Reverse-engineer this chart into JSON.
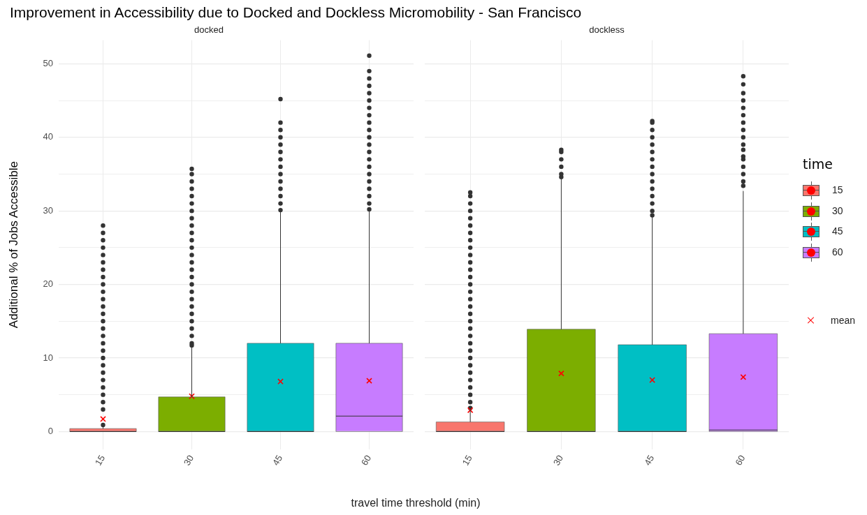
{
  "chart_data": [
    {
      "type": "box",
      "title": "Improvement in Accessibility due to Docked and Dockless Micromobility - San Francisco",
      "subtitle": "docked",
      "xlabel": "travel time threshold (min)",
      "ylabel": "Additional % of Jobs Accessible",
      "categories": [
        "15",
        "30",
        "45",
        "60"
      ],
      "ylim": [
        -2.4,
        53.2
      ],
      "yticks": [
        0,
        {
          "value": 5,
          "label": null
        },
        10,
        {
          "value": 15,
          "label": null
        },
        20,
        {
          "value": 25,
          "label": null
        },
        30,
        {
          "value": 35,
          "label": null
        },
        40,
        {
          "value": 45,
          "label": null
        },
        50
      ],
      "grid": true,
      "series": [
        {
          "type": "box",
          "colors": [
            "#f8766d",
            "#7cae00",
            "#00bfc4",
            "#c77cff"
          ],
          "boxes": [
            {
              "low": 0,
              "q1": 0,
              "median": 0,
              "q3": 0.4,
              "high": 0.8,
              "outliers": [
                0.9,
                3,
                4,
                5,
                6,
                7,
                8,
                9,
                10,
                11,
                12,
                13,
                14,
                15,
                16,
                17,
                18,
                19,
                20,
                21,
                22,
                23,
                24,
                25,
                26,
                27,
                28
              ]
            },
            {
              "low": 0,
              "q1": 0,
              "median": 0,
              "q3": 4.7,
              "high": 11.6,
              "outliers": [
                11.7,
                12,
                13,
                14,
                15,
                16,
                17,
                18,
                19,
                20,
                21,
                22,
                23,
                24,
                25,
                26,
                27,
                28,
                29,
                30,
                31,
                32,
                33,
                34,
                35,
                35.7
              ]
            },
            {
              "low": 0,
              "q1": 0,
              "median": 0,
              "q3": 12,
              "high": 30,
              "outliers": [
                30.1,
                31,
                32,
                33,
                34,
                35,
                36,
                37,
                38,
                39,
                40,
                41,
                42,
                45.2
              ]
            },
            {
              "low": 0,
              "q1": 0,
              "median": 2.1,
              "q3": 12,
              "high": 30,
              "outliers": [
                30.2,
                31,
                32,
                33,
                34,
                35,
                36,
                37,
                38,
                39,
                40,
                41,
                42,
                43,
                44,
                45,
                46,
                47,
                48,
                49,
                51.1
              ]
            }
          ]
        },
        {
          "type": "scatter",
          "color": "#ff0000",
          "marker": "cross",
          "x": [
            "15",
            "30",
            "45",
            "60"
          ],
          "values": [
            1.7,
            4.8,
            6.8,
            6.9
          ]
        }
      ]
    },
    {
      "type": "box",
      "subtitle": "dockless",
      "categories": [
        "15",
        "30",
        "45",
        "60"
      ],
      "ylim": [
        -2.4,
        53.2
      ],
      "yticks": [
        0,
        {
          "value": 5,
          "label": null
        },
        10,
        {
          "value": 15,
          "label": null
        },
        20,
        {
          "value": 25,
          "label": null
        },
        30,
        {
          "value": 35,
          "label": null
        },
        40,
        {
          "value": 45,
          "label": null
        },
        50
      ],
      "grid": true,
      "tick_labels": "x",
      "legend": "right",
      "legend_title": "time",
      "series": [
        {
          "type": "box",
          "colors": [
            "#f8766d",
            "#7cae00",
            "#00bfc4",
            "#c77cff"
          ],
          "boxes": [
            {
              "low": 0,
              "q1": 0,
              "median": 0,
              "q3": 1.3,
              "high": 3.1,
              "outliers": [
                3.2,
                4,
                5,
                6,
                7,
                8,
                9,
                10,
                11,
                12,
                13,
                14,
                15,
                16,
                17,
                18,
                19,
                20,
                21,
                22,
                23,
                24,
                25,
                26,
                27,
                28,
                29,
                30,
                31,
                32,
                32.5
              ]
            },
            {
              "low": 0,
              "q1": 0,
              "median": 0,
              "q3": 13.9,
              "high": 34.5,
              "outliers": [
                34.6,
                35,
                36,
                37,
                38,
                38.3
              ]
            },
            {
              "low": 0,
              "q1": 0,
              "median": 0,
              "q3": 11.8,
              "high": 29.3,
              "outliers": [
                29.4,
                30,
                31,
                32,
                33,
                34,
                35,
                36,
                37,
                38,
                39,
                40,
                41,
                42,
                42.2
              ]
            },
            {
              "low": 0,
              "q1": 0,
              "median": 0.2,
              "q3": 13.3,
              "high": 32.7,
              "outliers": [
                33.4,
                34,
                35,
                36,
                37,
                37.4,
                38.3,
                39,
                40,
                41,
                42,
                43,
                44,
                45,
                46,
                47.2,
                48.3
              ]
            }
          ]
        },
        {
          "type": "scatter",
          "name": "mean",
          "color": "#ff0000",
          "marker": "cross",
          "x": [
            "15",
            "30",
            "45",
            "60"
          ],
          "values": [
            2.9,
            7.9,
            7.0,
            7.4
          ]
        }
      ]
    }
  ]
}
